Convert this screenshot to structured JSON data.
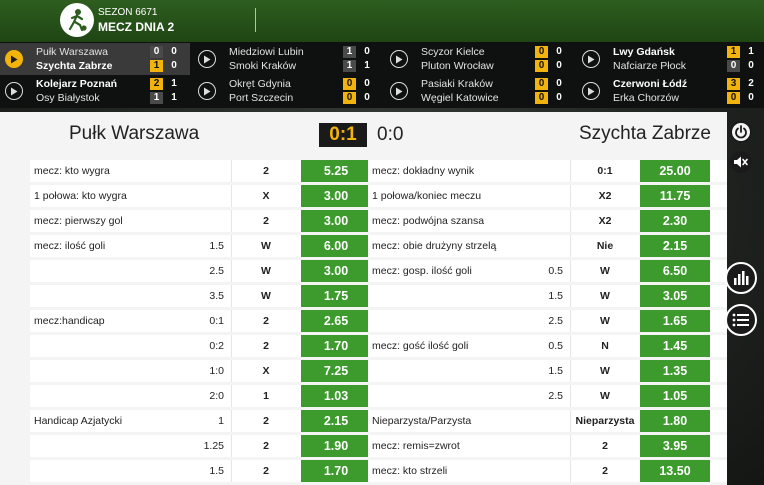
{
  "header": {
    "season": "SEZON 6671",
    "matchday": "MECZ DNIA 2"
  },
  "ticker": [
    {
      "home": "Pułk Warszawa",
      "away": "Szychta Zabrze",
      "home_ht": "0",
      "away_ht": "1",
      "home_ft": "0",
      "away_ft": "0",
      "active": true,
      "bold": "away",
      "hl": "away"
    },
    {
      "home": "Miedziowi Lubin",
      "away": "Smoki Kraków",
      "home_ht": "1",
      "away_ht": "1",
      "home_ft": "0",
      "away_ft": "1",
      "active": false,
      "bold": "",
      "hl": ""
    },
    {
      "home": "Scyzor Kielce",
      "away": "Pluton Wrocław",
      "home_ht": "0",
      "away_ht": "0",
      "home_ft": "0",
      "away_ft": "0",
      "active": false,
      "bold": "",
      "hl": "both"
    },
    {
      "home": "Lwy Gdańsk",
      "away": "Nafciarze Płock",
      "home_ht": "1",
      "away_ht": "0",
      "home_ft": "1",
      "away_ft": "0",
      "active": false,
      "bold": "home",
      "hl": "home"
    },
    {
      "home": "Kolejarz Poznań",
      "away": "Osy Białystok",
      "home_ht": "2",
      "away_ht": "1",
      "home_ft": "1",
      "away_ft": "1",
      "active": false,
      "bold": "home",
      "hl": "home"
    },
    {
      "home": "Okręt Gdynia",
      "away": "Port Szczecin",
      "home_ht": "0",
      "away_ht": "0",
      "home_ft": "0",
      "away_ft": "0",
      "active": false,
      "bold": "",
      "hl": "both"
    },
    {
      "home": "Pasiaki Kraków",
      "away": "Węgiel Katowice",
      "home_ht": "0",
      "away_ht": "0",
      "home_ft": "0",
      "away_ft": "0",
      "active": false,
      "bold": "",
      "hl": "both"
    },
    {
      "home": "Czerwoni Łódź",
      "away": "Erka Chorzów",
      "home_ht": "3",
      "away_ht": "0",
      "home_ft": "2",
      "away_ft": "0",
      "active": false,
      "bold": "home",
      "hl": "both"
    }
  ],
  "match": {
    "home": "Pułk Warszawa",
    "away": "Szychta Zabrze",
    "live_score": "0:1",
    "ht_score": "0:0"
  },
  "left_rows": [
    {
      "market": "mecz: kto wygra",
      "line": "",
      "sel": "2",
      "odd": "5.25"
    },
    {
      "market": "1 połowa: kto wygra",
      "line": "",
      "sel": "X",
      "odd": "3.00"
    },
    {
      "market": "mecz: pierwszy gol",
      "line": "",
      "sel": "2",
      "odd": "3.00"
    },
    {
      "market": "mecz: ilość goli",
      "line": "1.5",
      "sel": "W",
      "odd": "6.00"
    },
    {
      "market": "",
      "line": "2.5",
      "sel": "W",
      "odd": "3.00"
    },
    {
      "market": "",
      "line": "3.5",
      "sel": "W",
      "odd": "1.75"
    },
    {
      "market": "mecz:handicap",
      "line": "0:1",
      "sel": "2",
      "odd": "2.65"
    },
    {
      "market": "",
      "line": "0:2",
      "sel": "2",
      "odd": "1.70"
    },
    {
      "market": "",
      "line": "1:0",
      "sel": "X",
      "odd": "7.25"
    },
    {
      "market": "",
      "line": "2:0",
      "sel": "1",
      "odd": "1.03"
    },
    {
      "market": "Handicap Azjatycki",
      "line": "1",
      "sel": "2",
      "odd": "2.15"
    },
    {
      "market": "",
      "line": "1.25",
      "sel": "2",
      "odd": "1.90"
    },
    {
      "market": "",
      "line": "1.5",
      "sel": "2",
      "odd": "1.70"
    }
  ],
  "right_rows": [
    {
      "market": "mecz: dokładny wynik",
      "line": "",
      "sel": "0:1",
      "odd": "25.00"
    },
    {
      "market": "1 połowa/koniec meczu",
      "line": "",
      "sel": "X2",
      "odd": "11.75"
    },
    {
      "market": "mecz: podwójna szansa",
      "line": "",
      "sel": "X2",
      "odd": "2.30"
    },
    {
      "market": "mecz: obie drużyny strzelą",
      "line": "",
      "sel": "Nie",
      "odd": "2.15"
    },
    {
      "market": "mecz: gosp. ilość goli",
      "line": "0.5",
      "sel": "W",
      "odd": "6.50"
    },
    {
      "market": "",
      "line": "1.5",
      "sel": "W",
      "odd": "3.05"
    },
    {
      "market": "",
      "line": "2.5",
      "sel": "W",
      "odd": "1.65"
    },
    {
      "market": "mecz: gość ilość goli",
      "line": "0.5",
      "sel": "N",
      "odd": "1.45"
    },
    {
      "market": "",
      "line": "1.5",
      "sel": "W",
      "odd": "1.35"
    },
    {
      "market": "",
      "line": "2.5",
      "sel": "W",
      "odd": "1.05"
    },
    {
      "market": "Nieparzysta/Parzysta",
      "line": "",
      "sel": "Nieparzysta",
      "odd": "1.80"
    },
    {
      "market": "mecz: remis=zwrot",
      "line": "",
      "sel": "2",
      "odd": "3.95"
    },
    {
      "market": "mecz: kto strzeli",
      "line": "",
      "sel": "2",
      "odd": "13.50"
    }
  ],
  "icons": {
    "logo": "soccer-player-logo-icon",
    "play": "play-icon",
    "power": "power-icon",
    "mute": "speaker-mute-icon",
    "stats": "bar-chart-icon",
    "list": "list-icon"
  },
  "colors": {
    "accent_yellow": "#f2b30a",
    "odd_green": "#3c9b2c",
    "header_green": "#2e5e1f"
  }
}
